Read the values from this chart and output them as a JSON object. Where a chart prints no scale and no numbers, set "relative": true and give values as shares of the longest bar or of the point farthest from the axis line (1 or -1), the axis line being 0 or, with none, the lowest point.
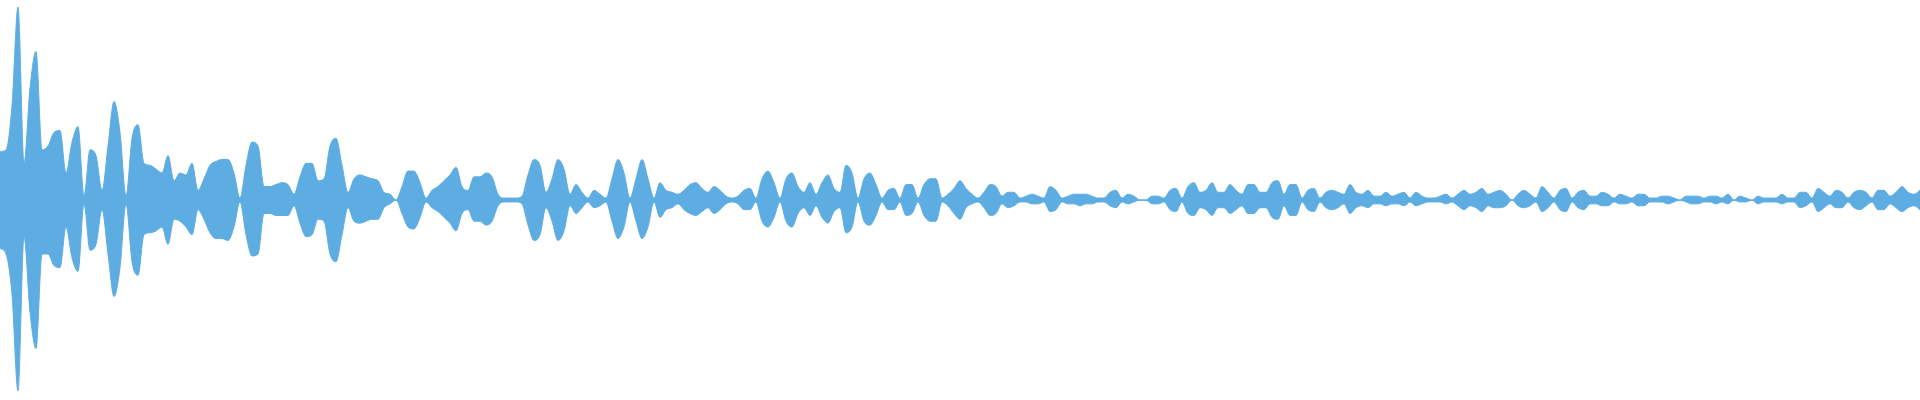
{
  "chart_data": {
    "type": "area",
    "relative": true,
    "legend": false,
    "grid": false,
    "tick_labels": false,
    "categories": [
      null,
      null,
      null,
      null,
      null,
      null,
      null,
      null,
      null,
      null,
      null,
      null,
      null,
      null,
      null,
      null,
      null,
      null,
      null,
      null,
      null,
      null,
      null,
      null,
      null,
      null,
      null,
      null,
      null,
      null,
      null,
      null,
      null,
      null,
      null,
      null,
      null,
      null,
      null,
      null,
      null,
      null,
      null,
      null,
      null,
      null,
      null,
      null,
      null,
      null,
      null,
      null,
      null,
      null,
      null,
      null,
      null,
      null,
      null,
      null,
      null,
      null,
      null,
      null,
      null,
      null,
      null,
      null,
      null,
      null,
      null,
      null,
      null,
      null,
      null,
      null,
      null,
      null,
      null,
      null,
      null,
      null,
      null,
      null,
      null,
      null,
      null,
      null,
      null,
      null,
      null,
      null,
      null,
      null,
      null,
      null,
      null,
      null,
      null,
      null,
      null,
      null,
      null,
      null,
      null,
      null,
      null,
      null,
      null,
      null,
      null,
      null,
      null,
      null,
      null,
      null,
      null,
      null,
      null,
      null,
      null,
      null,
      null,
      null,
      null,
      null,
      null,
      null,
      null,
      null,
      null,
      null,
      null,
      null,
      null,
      null,
      null,
      null,
      null,
      null,
      null,
      null,
      null,
      null,
      null,
      null,
      null,
      null,
      null,
      null,
      null,
      null,
      null,
      null,
      null,
      null,
      null,
      null,
      null,
      null,
      null,
      null,
      null,
      null,
      null,
      null,
      null,
      null,
      null,
      null,
      null,
      null,
      null,
      null,
      null,
      null,
      null,
      null,
      null,
      null,
      null,
      null,
      null,
      null,
      null,
      null,
      null,
      null,
      null,
      null,
      null,
      null,
      null,
      null,
      null,
      null,
      null,
      null,
      null,
      null,
      null,
      null,
      null,
      null,
      null,
      null,
      null,
      null,
      null,
      null,
      null,
      null,
      null,
      null,
      null,
      null,
      null,
      null,
      null,
      null,
      null,
      null,
      null,
      null,
      null,
      null,
      null,
      null,
      null,
      null,
      null,
      null,
      null,
      null,
      null,
      null,
      null,
      null,
      null,
      null,
      null,
      null,
      null,
      null,
      null,
      null,
      null,
      null,
      null,
      null,
      null,
      null,
      null,
      null,
      null,
      null,
      null,
      null,
      null,
      null,
      null,
      null,
      null,
      null,
      null,
      null,
      null,
      null,
      null,
      null,
      null,
      null,
      null,
      null,
      null,
      null,
      null,
      null,
      null,
      null,
      null,
      null,
      null,
      null,
      null,
      null,
      null,
      null,
      null,
      null,
      null,
      null,
      null,
      null,
      null,
      null,
      null,
      null,
      null,
      null,
      null,
      null,
      null,
      null,
      null,
      null,
      null,
      null,
      null,
      null,
      null,
      null,
      null,
      null,
      null,
      null,
      null,
      null,
      null,
      null,
      null
    ],
    "series": [
      {
        "color": "#5dade2",
        "values": [
          0.25,
          0.26,
          0.49,
          1,
          0.19,
          0.58,
          0.77,
          0.26,
          0.28,
          0.35,
          0.36,
          0.14,
          0.3,
          0.38,
          0.02,
          0.26,
          0.23,
          0.05,
          0.28,
          0.51,
          0.35,
          0.02,
          0.32,
          0.39,
          0.19,
          0.18,
          0.16,
          0.14,
          0.23,
          0.1,
          0.14,
          0.13,
          0.19,
          0.05,
          0.11,
          0.18,
          0.2,
          0.21,
          0.21,
          0.14,
          0.01,
          0.18,
          0.3,
          0.28,
          0.07,
          0.07,
          0.08,
          0.09,
          0.08,
          0.03,
          0.12,
          0.19,
          0.19,
          0.1,
          0.11,
          0.28,
          0.32,
          0.18,
          0.04,
          0.11,
          0.13,
          0.12,
          0.11,
          0.1,
          0.04,
          0.03,
          0,
          0.07,
          0.15,
          0.15,
          0.09,
          0.01,
          0.05,
          0.07,
          0.1,
          0.13,
          0.17,
          0.07,
          0.05,
          0.12,
          0.12,
          0.14,
          0.12,
          0.03,
          0.01,
          0.01,
          0.01,
          0.02,
          0.13,
          0.21,
          0.18,
          0.04,
          0.11,
          0.21,
          0.16,
          0.03,
          0.08,
          0.04,
          0.01,
          0.05,
          0.03,
          0.01,
          0.11,
          0.21,
          0.14,
          0.01,
          0.11,
          0.21,
          0.11,
          0.01,
          0.09,
          0.05,
          0.04,
          0.03,
          0.05,
          0.08,
          0.09,
          0.06,
          0.04,
          0.07,
          0.05,
          0.02,
          0.01,
          0.02,
          0.05,
          0.06,
          0.01,
          0.11,
          0.15,
          0.09,
          0.01,
          0.11,
          0.14,
          0.07,
          0.04,
          0.09,
          0.03,
          0.09,
          0.13,
          0.06,
          0.04,
          0.18,
          0.14,
          0.01,
          0.11,
          0.14,
          0.08,
          0.01,
          0.05,
          0.06,
          0.01,
          0.08,
          0.08,
          0.01,
          0.08,
          0.11,
          0.11,
          0.01,
          0.03,
          0.06,
          0.1,
          0.06,
          0.03,
          0.01,
          0.04,
          0.08,
          0.07,
          0.02,
          0.04,
          0.04,
          0.01,
          0.02,
          0.03,
          0.02,
          0.01,
          0.07,
          0.05,
          0.01,
          0.02,
          0.03,
          0.03,
          0.03,
          0.02,
          0.01,
          0.01,
          0.04,
          0.05,
          0.01,
          0.03,
          0.02,
          0,
          0,
          0.02,
          0.02,
          0.01,
          0.05,
          0.06,
          0.01,
          0.07,
          0.09,
          0.04,
          0.05,
          0.09,
          0.04,
          0.04,
          0.08,
          0.05,
          0.03,
          0.08,
          0.08,
          0.04,
          0.04,
          0.09,
          0.1,
          0.03,
          0.08,
          0.08,
          0.01,
          0.05,
          0.06,
          0.01,
          0.04,
          0.05,
          0.04,
          0.03,
          0.08,
          0.04,
          0.03,
          0.05,
          0.02,
          0.02,
          0.04,
          0.02,
          0.03,
          0.04,
          0.01,
          0.04,
          0.02,
          0.01,
          0.01,
          0.02,
          0.03,
          0.01,
          0.03,
          0.05,
          0.03,
          0.04,
          0.06,
          0.03,
          0.04,
          0.05,
          0.03,
          0,
          0.03,
          0.05,
          0.03,
          0.01,
          0.07,
          0.04,
          0.01,
          0.05,
          0.06,
          0.01,
          0.04,
          0.05,
          0.02,
          0.02,
          0.04,
          0.03,
          0.01,
          0.03,
          0.02,
          0.01,
          0.03,
          0.03,
          0.01,
          0.01,
          0.02,
          0.02,
          0.01,
          0,
          0.02,
          0.02,
          0.02,
          0.01,
          0.02,
          0.02,
          0.01,
          0.03,
          0,
          0.02,
          0.01,
          0,
          0.02,
          0.01,
          0.01,
          0.01,
          0.03,
          0.01,
          0.01,
          0.04,
          0.04,
          0.01,
          0.06,
          0.04,
          0.02,
          0.05,
          0.04,
          0.01,
          0.04,
          0.05,
          0.04,
          0.01,
          0.05,
          0.05,
          0.02,
          0.04,
          0.07,
          0.04,
          0.03,
          0.05
        ]
      },
      {
        "color": "#5dade2",
        "values": [
          -0.25,
          -0.28,
          -0.49,
          -0.99,
          -0.19,
          -0.58,
          -0.77,
          -0.28,
          -0.28,
          -0.34,
          -0.35,
          -0.14,
          -0.3,
          -0.37,
          -0.02,
          -0.26,
          -0.23,
          -0.05,
          -0.28,
          -0.5,
          -0.35,
          -0.02,
          -0.32,
          -0.39,
          -0.18,
          -0.17,
          -0.16,
          -0.14,
          -0.23,
          -0.1,
          -0.11,
          -0.14,
          -0.18,
          -0.05,
          -0.1,
          -0.17,
          -0.2,
          -0.2,
          -0.21,
          -0.14,
          -0.01,
          -0.18,
          -0.29,
          -0.28,
          -0.07,
          -0.07,
          -0.08,
          -0.08,
          -0.08,
          -0.03,
          -0.12,
          -0.19,
          -0.18,
          -0.1,
          -0.11,
          -0.28,
          -0.32,
          -0.18,
          -0.04,
          -0.11,
          -0.12,
          -0.11,
          -0.1,
          -0.1,
          -0.04,
          -0.02,
          0,
          -0.07,
          -0.14,
          -0.15,
          -0.09,
          -0.01,
          -0.04,
          -0.06,
          -0.09,
          -0.12,
          -0.16,
          -0.07,
          -0.05,
          -0.11,
          -0.11,
          -0.13,
          -0.11,
          -0.03,
          -0.01,
          -0.01,
          -0.01,
          -0.02,
          -0.13,
          -0.21,
          -0.18,
          -0.04,
          -0.11,
          -0.21,
          -0.16,
          -0.03,
          -0.07,
          -0.04,
          -0.01,
          -0.04,
          -0.03,
          -0.01,
          -0.11,
          -0.2,
          -0.14,
          -0.01,
          -0.11,
          -0.2,
          -0.14,
          -0.01,
          -0.09,
          -0.05,
          -0.04,
          -0.02,
          -0.05,
          -0.07,
          -0.08,
          -0.06,
          -0.04,
          -0.07,
          -0.05,
          -0.02,
          -0.01,
          -0.02,
          -0.05,
          -0.05,
          -0.01,
          -0.11,
          -0.14,
          -0.09,
          -0.01,
          -0.11,
          -0.14,
          -0.07,
          -0.04,
          -0.08,
          -0.03,
          -0.09,
          -0.12,
          -0.06,
          -0.04,
          -0.17,
          -0.14,
          -0.01,
          -0.11,
          -0.13,
          -0.08,
          -0.01,
          -0.05,
          -0.05,
          -0.01,
          -0.08,
          -0.07,
          -0.01,
          -0.08,
          -0.11,
          -0.11,
          -0.01,
          -0.03,
          -0.07,
          -0.1,
          -0.04,
          -0.02,
          -0.01,
          -0.04,
          -0.08,
          -0.07,
          -0.02,
          -0.04,
          -0.03,
          -0.01,
          -0.01,
          -0.02,
          -0.02,
          -0.01,
          -0.06,
          -0.05,
          -0.01,
          -0.02,
          -0.02,
          -0.03,
          -0.02,
          -0.02,
          -0.01,
          -0.01,
          -0.03,
          -0.04,
          -0.01,
          -0.02,
          -0.01,
          0,
          0,
          -0.02,
          -0.02,
          -0.01,
          -0.05,
          -0.06,
          -0.01,
          -0.07,
          -0.08,
          -0.04,
          -0.05,
          -0.08,
          -0.04,
          -0.04,
          -0.07,
          -0.05,
          -0.03,
          -0.07,
          -0.07,
          -0.04,
          -0.04,
          -0.09,
          -0.1,
          -0.03,
          -0.08,
          -0.08,
          -0.01,
          -0.05,
          -0.06,
          -0.01,
          -0.04,
          -0.05,
          -0.04,
          -0.02,
          -0.07,
          -0.04,
          -0.03,
          -0.04,
          -0.02,
          -0.02,
          -0.03,
          -0.02,
          -0.02,
          -0.03,
          -0.01,
          -0.03,
          -0.02,
          -0.01,
          -0.01,
          -0.01,
          -0.02,
          -0.01,
          -0.03,
          -0.05,
          -0.03,
          -0.04,
          -0.06,
          -0.03,
          -0.04,
          -0.04,
          -0.03,
          0,
          -0.03,
          -0.04,
          -0.03,
          -0.01,
          -0.06,
          -0.04,
          -0.01,
          -0.05,
          -0.06,
          -0.01,
          -0.04,
          -0.05,
          -0.02,
          -0.02,
          -0.03,
          -0.03,
          -0.01,
          -0.02,
          -0.02,
          -0.01,
          -0.03,
          -0.03,
          -0.01,
          -0.01,
          -0.01,
          -0.02,
          -0.01,
          0,
          -0.01,
          -0.02,
          -0.02,
          -0.01,
          -0.01,
          -0.02,
          -0.01,
          -0.02,
          0,
          -0.01,
          -0.01,
          0,
          -0.02,
          -0.01,
          -0.01,
          -0.01,
          -0.02,
          -0.01,
          -0.01,
          -0.04,
          -0.03,
          -0.01,
          -0.06,
          -0.04,
          -0.02,
          -0.04,
          -0.04,
          -0.01,
          -0.04,
          -0.05,
          -0.03,
          -0.01,
          -0.05,
          -0.05,
          -0.02,
          -0.04,
          -0.06,
          -0.04,
          -0.03,
          -0.05
        ]
      }
    ]
  }
}
